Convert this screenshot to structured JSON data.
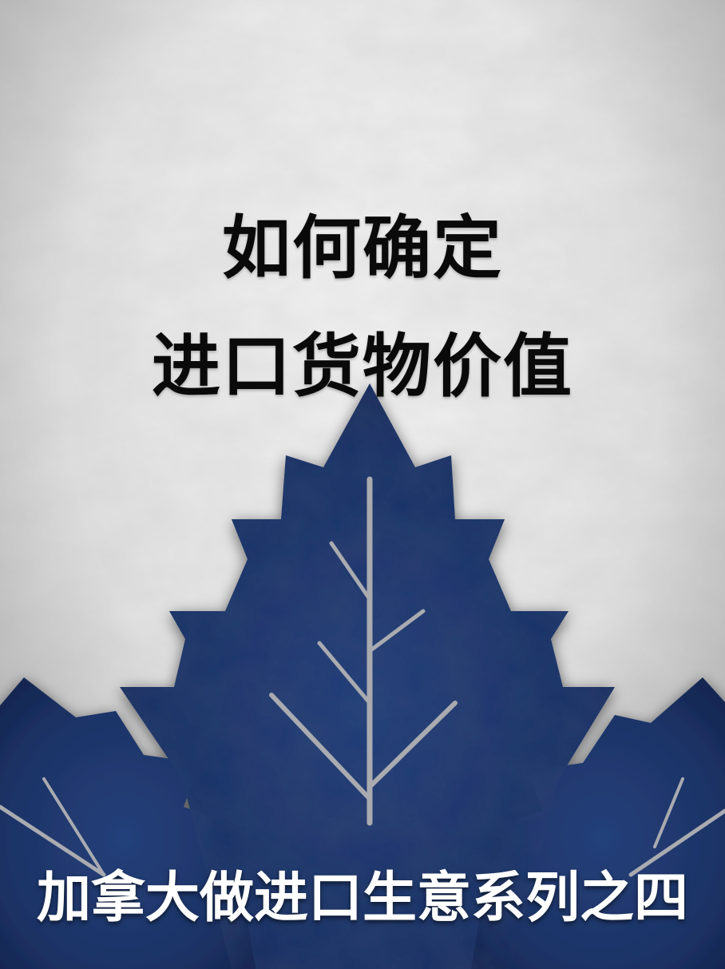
{
  "title": {
    "line1": "如何确定",
    "line2": "进口货物价值"
  },
  "subtitle": "加拿大做进口生意系列之四",
  "colors": {
    "background": "#e6e6e6",
    "leaf": "#1d3366",
    "leaf_vein": "#a9abb0",
    "title_text": "#0a0a0a",
    "subtitle_text": "#ffffff"
  },
  "icons": [
    "maple-leaf-icon"
  ]
}
